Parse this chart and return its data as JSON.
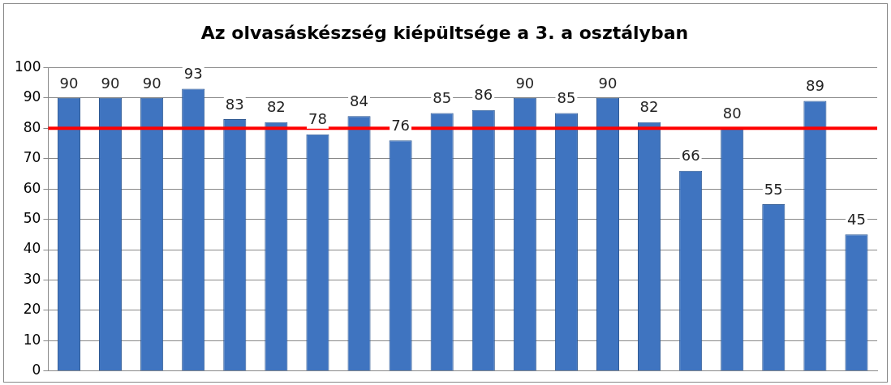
{
  "chart_data": {
    "type": "bar",
    "title": "Az olvasáskészség kiépültsége a 3. a osztályban",
    "categories": [
      null,
      null,
      null,
      null,
      null,
      null,
      null,
      null,
      null,
      null,
      null,
      null,
      null,
      null,
      null,
      null,
      null,
      null,
      null,
      null
    ],
    "values": [
      90,
      90,
      90,
      93,
      83,
      82,
      78,
      84,
      76,
      85,
      86,
      90,
      85,
      90,
      82,
      66,
      80,
      55,
      89,
      45
    ],
    "color": "#3f74c0",
    "ylim": [
      0,
      100
    ],
    "yticks": [
      0,
      10,
      20,
      30,
      40,
      50,
      60,
      70,
      80,
      90,
      100
    ],
    "grid": "y",
    "data_labels": true,
    "tick_labels": "y",
    "ref_lines": [
      {
        "axis": "y",
        "value": 80,
        "color": "#ff0000"
      }
    ]
  }
}
